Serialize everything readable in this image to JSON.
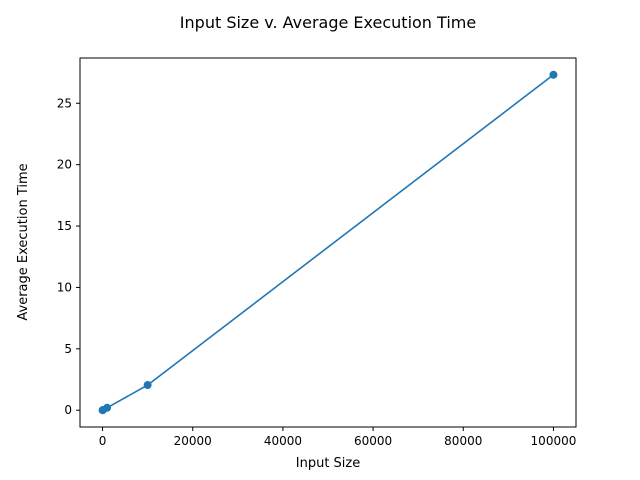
{
  "chart_data": {
    "type": "line",
    "title": "Input Size v. Average Execution Time",
    "xlabel": "Input Size",
    "ylabel": "Average Execution Time",
    "xlim": [
      -5000,
      105000
    ],
    "ylim": [
      -1.366,
      28.686
    ],
    "xticks": [
      0,
      20000,
      40000,
      60000,
      80000,
      100000
    ],
    "xtick_labels": [
      "0",
      "20000",
      "40000",
      "60000",
      "80000",
      "100000"
    ],
    "yticks": [
      0,
      5,
      10,
      15,
      20,
      25
    ],
    "ytick_labels": [
      "0",
      "5",
      "10",
      "15",
      "20",
      "25"
    ],
    "grid": false,
    "legend": "none",
    "series": [
      {
        "color": "#1f77b4",
        "marker": "circle",
        "x": [
          10,
          100,
          1000,
          10000,
          100000
        ],
        "y": [
          0.002,
          0.02,
          0.2,
          2.05,
          27.32
        ]
      }
    ]
  }
}
